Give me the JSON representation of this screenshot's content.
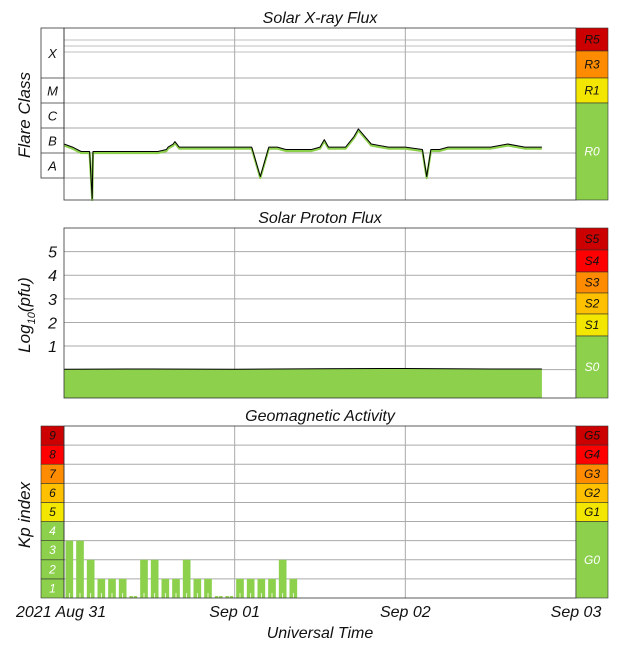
{
  "chart_data": [
    {
      "type": "line",
      "title": "Solar X-ray Flux",
      "ylabel": "Flare Class",
      "y_scale": "log",
      "ylim": [
        "A0",
        "X9"
      ],
      "flare_classes": [
        "X",
        "M",
        "C",
        "B",
        "A"
      ],
      "radio_blackout_scale": [
        {
          "label": "R5",
          "color": "#cc0000"
        },
        {
          "label": "R3",
          "color": "#ff8c00"
        },
        {
          "label": "R1",
          "color": "#f3e600"
        },
        {
          "label": "R0",
          "color": "#8cd04c"
        }
      ],
      "series": [
        {
          "x_days": [
            0.0,
            0.1,
            0.2,
            0.3,
            0.33,
            0.34,
            0.4,
            0.6,
            0.8,
            1.0,
            1.1,
            1.2,
            1.22,
            1.28,
            1.3,
            1.35,
            1.4,
            1.5,
            1.6,
            1.7,
            1.8,
            2.0,
            2.2,
            2.3,
            2.4,
            2.5,
            2.6,
            2.8,
            2.9,
            3.0,
            3.05,
            3.1,
            3.2,
            3.3,
            3.4,
            3.45,
            3.6,
            3.8,
            4.0,
            4.2,
            4.25,
            4.3,
            4.4,
            4.5,
            4.6,
            4.8,
            5.0,
            5.2,
            5.4,
            5.6
          ],
          "class_values": [
            "B2",
            "B1.5",
            "B1",
            "B1",
            "A0",
            "B1",
            "B1",
            "B1",
            "B1",
            "B1",
            "B1",
            "B1.2",
            "B1.5",
            "B2",
            "B2.5",
            "B1.5",
            "B1.5",
            "B1.5",
            "B1.5",
            "B1.5",
            "B1.5",
            "B1.5",
            "B1.5",
            "A1",
            "B1.5",
            "B1.5",
            "B1.2",
            "B1.2",
            "B1.2",
            "B1.5",
            "B3",
            "B1.5",
            "B1.5",
            "B1.5",
            "B4",
            "B8",
            "B2",
            "B1.5",
            "B1.5",
            "B1.2",
            "A1",
            "B1.2",
            "B1.2",
            "B1.5",
            "B1.5",
            "B1.5",
            "B1.5",
            "B2",
            "B1.5",
            "B1.5"
          ]
        }
      ]
    },
    {
      "type": "area",
      "title": "Solar Proton Flux",
      "ylabel": "Log10(pfu)",
      "ylabel_main": "Log",
      "ylabel_sub": "10",
      "ylabel_tail": "(pfu)",
      "y_ticks": [
        "1",
        "2",
        "3",
        "4",
        "5"
      ],
      "ylim": [
        -1.2,
        6
      ],
      "solar_radiation_scale": [
        {
          "label": "S5",
          "color": "#cc0000"
        },
        {
          "label": "S4",
          "color": "#ff0000"
        },
        {
          "label": "S3",
          "color": "#ff8c00"
        },
        {
          "label": "S2",
          "color": "#ffc000"
        },
        {
          "label": "S1",
          "color": "#f3e600"
        },
        {
          "label": "S0",
          "color": "#8cd04c"
        }
      ],
      "series": [
        {
          "x_days": [
            0,
            1,
            2,
            3,
            4,
            5,
            5.6
          ],
          "log_values": [
            0.02,
            0.03,
            0.02,
            0.04,
            0.05,
            0.03,
            0.03
          ]
        }
      ]
    },
    {
      "type": "bar",
      "title": "Geomagnetic Activity",
      "ylabel": "Kp index",
      "ylim": [
        0,
        9
      ],
      "kp_levels": [
        "1",
        "2",
        "3",
        "4",
        "5",
        "6",
        "7",
        "8",
        "9"
      ],
      "geomagnetic_storm_scale": [
        {
          "label": "G5",
          "color": "#cc0000"
        },
        {
          "label": "G4",
          "color": "#ff0000"
        },
        {
          "label": "G3",
          "color": "#ff8c00"
        },
        {
          "label": "G2",
          "color": "#ffc000"
        },
        {
          "label": "G1",
          "color": "#f3e600"
        },
        {
          "label": "G0",
          "color": "#8cd04c"
        }
      ],
      "bar_interval_hours": 3,
      "values": [
        3,
        3,
        2,
        1,
        1,
        1,
        0.1,
        2,
        2,
        1,
        1,
        2,
        1,
        1,
        0.1,
        0.1,
        1,
        1,
        1,
        1,
        2,
        1
      ]
    }
  ],
  "x_axis": {
    "label": "Universal Time",
    "ticks": [
      "2021 Aug 31",
      "Sep 01",
      "Sep 02",
      "Sep 03"
    ],
    "range_days": [
      0,
      6
    ]
  },
  "colors": {
    "fill_green": "#8cd04c",
    "grid": "#aaaaaa",
    "line": "#000000"
  }
}
